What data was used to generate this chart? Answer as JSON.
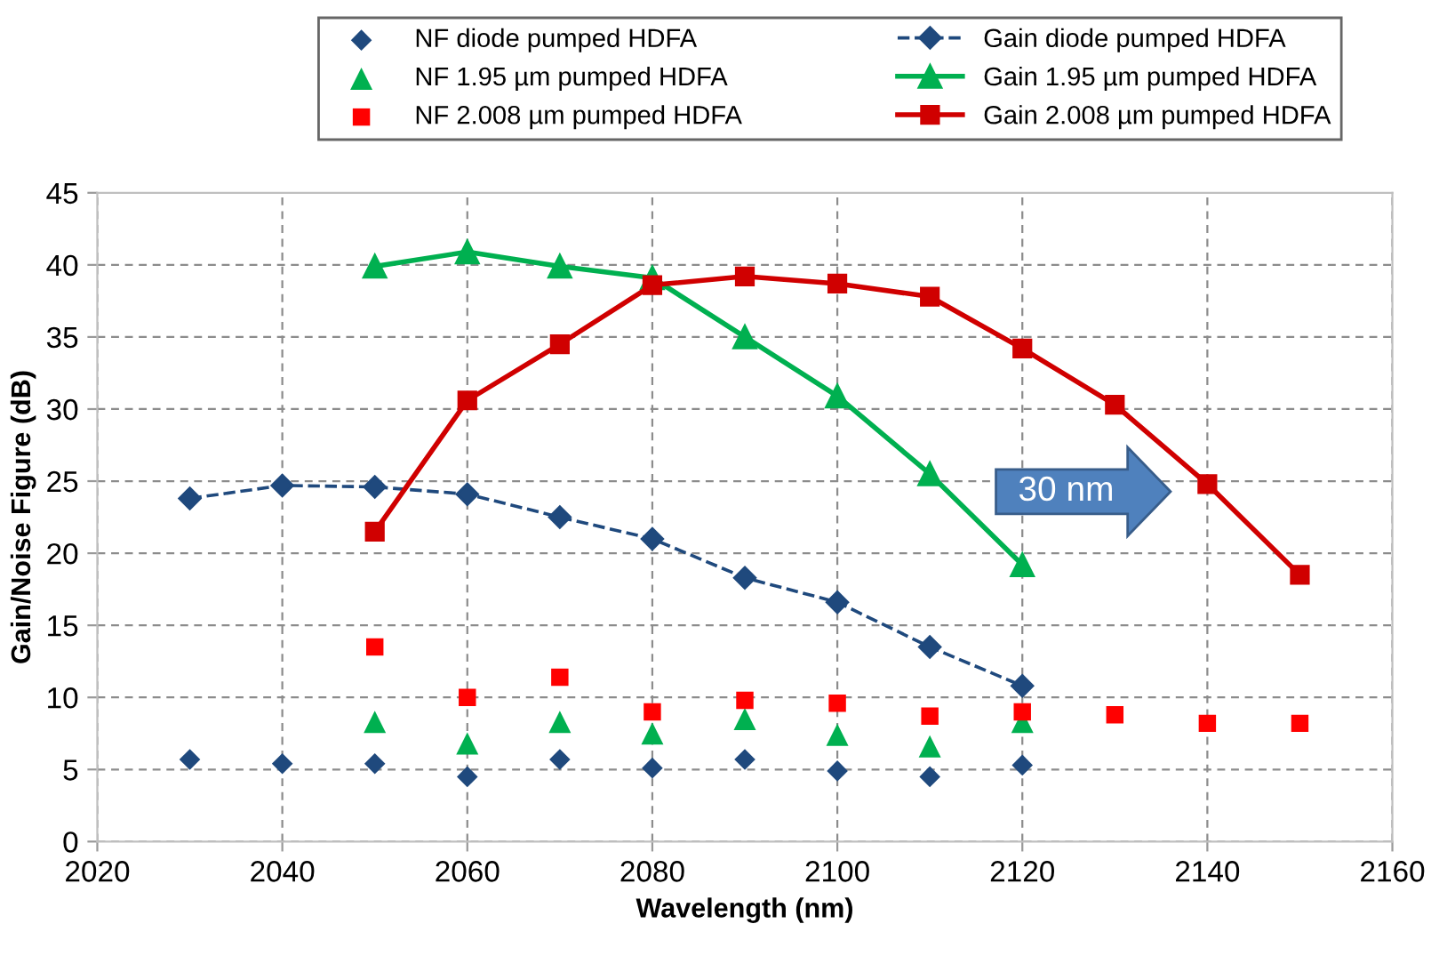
{
  "chart_data": {
    "type": "line",
    "xlabel": "Wavelength (nm)",
    "ylabel": "Gain/Noise Figure (dB)",
    "xlim": [
      2020,
      2160
    ],
    "xticks": [
      2020,
      2040,
      2060,
      2080,
      2100,
      2120,
      2140,
      2160
    ],
    "ylim": [
      0,
      45
    ],
    "yticks": [
      0,
      5,
      10,
      15,
      20,
      25,
      30,
      35,
      40,
      45
    ],
    "grid": true,
    "legend": "top",
    "annotations": [
      "30 nm"
    ],
    "series": [
      {
        "name": "NF diode pumped HDFA",
        "type": "scatter",
        "marker": "diamond",
        "color": "#1f497d",
        "x": [
          2030,
          2040,
          2050,
          2060,
          2070,
          2080,
          2090,
          2100,
          2110,
          2120
        ],
        "values": [
          5.7,
          5.4,
          5.4,
          4.5,
          5.7,
          5.1,
          5.7,
          4.9,
          4.5,
          5.3
        ]
      },
      {
        "name": "Gain diode pumped HDFA",
        "marker": "diamond",
        "line_style": "dashed",
        "color": "#1f497d",
        "x": [
          2030,
          2040,
          2050,
          2060,
          2070,
          2080,
          2090,
          2100,
          2110,
          2120
        ],
        "values": [
          23.8,
          24.7,
          24.6,
          24.1,
          22.5,
          21.0,
          18.3,
          16.6,
          13.5,
          10.8
        ]
      },
      {
        "name": "NF 1.95 µm pumped HDFA",
        "type": "scatter",
        "marker": "triangle",
        "color": "#00b050",
        "x": [
          2050,
          2060,
          2070,
          2080,
          2090,
          2100,
          2110,
          2120
        ],
        "values": [
          8.3,
          6.8,
          8.3,
          7.5,
          8.5,
          7.4,
          6.6,
          8.3
        ]
      },
      {
        "name": "Gain 1.95 µm pumped HDFA",
        "marker": "triangle",
        "line_style": "solid",
        "color": "#00b050",
        "x": [
          2050,
          2060,
          2070,
          2080,
          2090,
          2100,
          2110,
          2120
        ],
        "values": [
          39.9,
          40.9,
          39.9,
          39.1,
          35.0,
          30.9,
          25.5,
          19.2
        ]
      },
      {
        "name": "NF 2.008 µm pumped HDFA",
        "type": "scatter",
        "marker": "square",
        "color": "#ff0000",
        "x": [
          2050,
          2060,
          2070,
          2080,
          2090,
          2100,
          2110,
          2120,
          2130,
          2140,
          2150
        ],
        "values": [
          13.5,
          10.0,
          11.4,
          9.0,
          9.8,
          9.6,
          8.7,
          9.0,
          8.8,
          8.2,
          8.2
        ]
      },
      {
        "name": "Gain 2.008 µm pumped HDFA",
        "marker": "square",
        "line_style": "solid",
        "color": "#d00000",
        "x": [
          2050,
          2060,
          2070,
          2080,
          2090,
          2100,
          2110,
          2120,
          2130,
          2140,
          2150
        ],
        "values": [
          21.5,
          30.6,
          34.5,
          38.6,
          39.2,
          38.7,
          37.8,
          34.2,
          30.3,
          24.8,
          18.5
        ]
      }
    ]
  }
}
